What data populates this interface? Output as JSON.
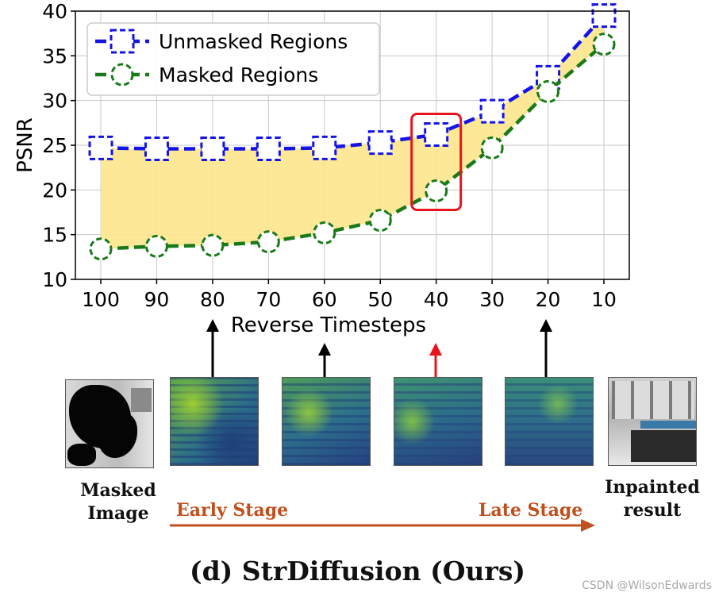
{
  "chart_data": {
    "type": "line",
    "xlabel": "Reverse Timesteps",
    "ylabel": "PSNR",
    "x": [
      100,
      90,
      80,
      70,
      60,
      50,
      40,
      30,
      20,
      10
    ],
    "xticks": [
      "100",
      "90",
      "80",
      "70",
      "60",
      "50",
      "40",
      "30",
      "20",
      "10"
    ],
    "yticks": [
      "10",
      "15",
      "20",
      "25",
      "30",
      "35",
      "40"
    ],
    "ylim": [
      10,
      40
    ],
    "x_reversed": true,
    "grid": true,
    "legend_position": "top-left",
    "fill_between": {
      "color": "#fde58c"
    },
    "highlight": {
      "x": 40,
      "color": "#e8141c"
    },
    "series": [
      {
        "name": "Unmasked Regions",
        "color": "#1414e6",
        "marker": "square",
        "values": [
          24.7,
          24.6,
          24.6,
          24.6,
          24.7,
          25.3,
          26.2,
          28.8,
          32.6,
          39.5
        ]
      },
      {
        "name": "Masked Regions",
        "color": "#1a7a1a",
        "marker": "circle",
        "values": [
          13.4,
          13.7,
          13.8,
          14.2,
          15.2,
          16.6,
          19.9,
          24.7,
          31.0,
          36.3
        ]
      }
    ]
  },
  "figure": {
    "caption": "(d) StrDiffusion (Ours)",
    "left_label": "Masked\nImage",
    "right_label": "Inpainted\nresult",
    "early_stage": "Early Stage",
    "late_stage": "Late Stage",
    "watermark": "CSDN @WilsonEdwards",
    "arrow_targets": [
      80,
      70,
      40,
      20
    ],
    "highlight_arrow_target": 40,
    "arrow_color": "#000000",
    "highlight_arrow_color": "#e8141c",
    "stage_arrow_color": "#c0501e"
  }
}
